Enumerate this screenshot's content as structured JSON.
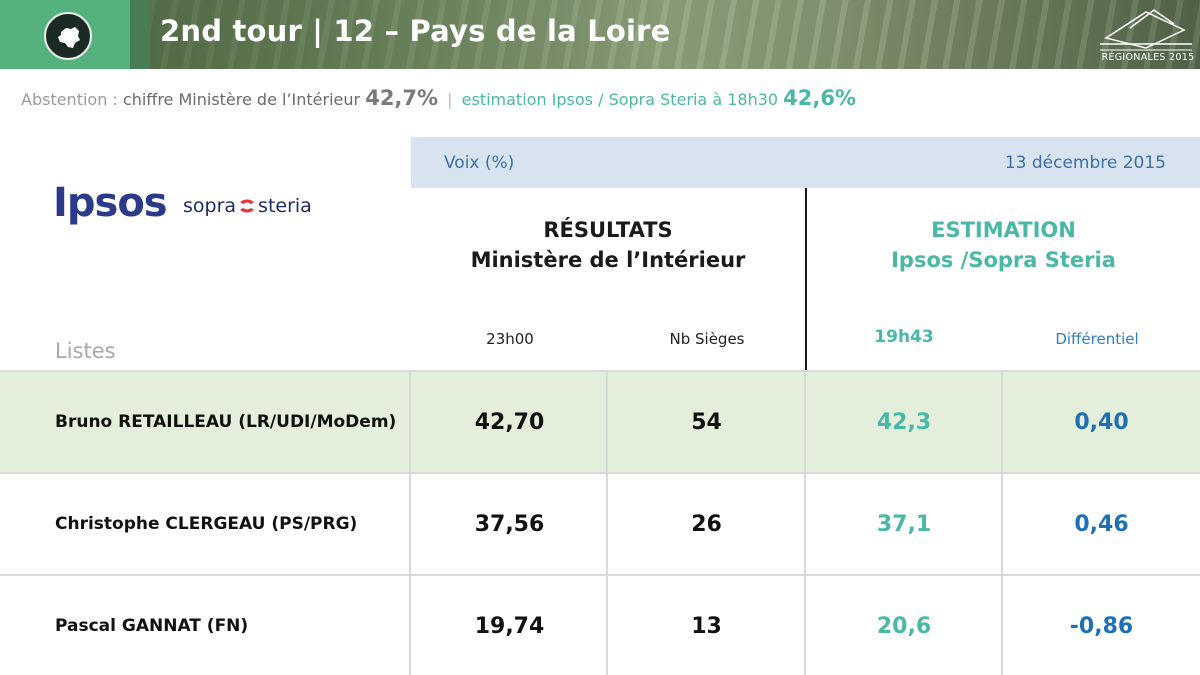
{
  "header": {
    "title": "2nd tour | 12 – Pays de la Loire",
    "badge_label": "RÉGIONALES 2015"
  },
  "abstention": {
    "label": "Abstention :",
    "ministere_label": "chiffre Ministère de l’Intérieur",
    "ministere_value": "42,7%",
    "separator": "|",
    "ipsos_label": "estimation Ipsos / Sopra Steria à 18h30",
    "ipsos_value": "42,6%"
  },
  "logos": {
    "ipsos": "Ipsos",
    "sopra_left": "sopra",
    "sopra_right": "steria"
  },
  "voix_bar": {
    "label": "Voix (%)",
    "date": "13 décembre 2015"
  },
  "columns": {
    "results_title": "RÉSULTATS",
    "results_subtitle": "Ministère de l’Intérieur",
    "estimation_title": "ESTIMATION",
    "estimation_subtitle": "Ipsos /Sopra Steria",
    "time_results": "23h00",
    "seats": "Nb Sièges",
    "time_estimation": "19h43",
    "differential": "Différentiel",
    "lists": "Listes"
  },
  "rows": [
    {
      "name": "Bruno RETAILLEAU (LR/UDI/MoDem)",
      "result": "42,70",
      "seats": "54",
      "estimate": "42,3",
      "diff": "0,40"
    },
    {
      "name": "Christophe CLERGEAU (PS/PRG)",
      "result": "37,56",
      "seats": "26",
      "estimate": "37,1",
      "diff": "0,46"
    },
    {
      "name": "Pascal GANNAT (FN)",
      "result": "19,74",
      "seats": "13",
      "estimate": "20,6",
      "diff": "-0,86"
    }
  ],
  "colors": {
    "teal": "#4ab8a7",
    "blue": "#1f6fb5",
    "highlight_row": "#e3eedb",
    "voix_bar": "#d8e3f1",
    "ipsos_navy": "#2c3a8a",
    "banner_green": "#55b27e"
  },
  "icons": {
    "region_map": "pays-de-la-loire-map-icon",
    "regionales_logo": "ballot-box-icon",
    "sopra_mark": "sopra-steria-mark-icon"
  }
}
